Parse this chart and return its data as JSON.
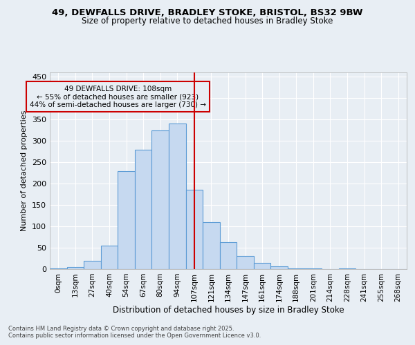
{
  "title1": "49, DEWFALLS DRIVE, BRADLEY STOKE, BRISTOL, BS32 9BW",
  "title2": "Size of property relative to detached houses in Bradley Stoke",
  "xlabel": "Distribution of detached houses by size in Bradley Stoke",
  "ylabel": "Number of detached properties",
  "bar_labels": [
    "0sqm",
    "13sqm",
    "27sqm",
    "40sqm",
    "54sqm",
    "67sqm",
    "80sqm",
    "94sqm",
    "107sqm",
    "121sqm",
    "134sqm",
    "147sqm",
    "161sqm",
    "174sqm",
    "188sqm",
    "201sqm",
    "214sqm",
    "228sqm",
    "241sqm",
    "255sqm",
    "268sqm"
  ],
  "bar_values": [
    2,
    5,
    20,
    55,
    230,
    280,
    325,
    340,
    185,
    110,
    63,
    30,
    15,
    7,
    2,
    1,
    0,
    1,
    0,
    0,
    0
  ],
  "bar_color": "#c6d9f0",
  "bar_edge_color": "#5b9bd5",
  "vline_x_index": 8,
  "vline_color": "#cc0000",
  "ylim": [
    0,
    460
  ],
  "yticks": [
    0,
    50,
    100,
    150,
    200,
    250,
    300,
    350,
    400,
    450
  ],
  "annotation_text": "49 DEWFALLS DRIVE: 108sqm\n← 55% of detached houses are smaller (923)\n44% of semi-detached houses are larger (730) →",
  "annotation_box_color": "#cc0000",
  "bg_color": "#e8eef4",
  "grid_color": "#ffffff",
  "footer1": "Contains HM Land Registry data © Crown copyright and database right 2025.",
  "footer2": "Contains public sector information licensed under the Open Government Licence v3.0."
}
